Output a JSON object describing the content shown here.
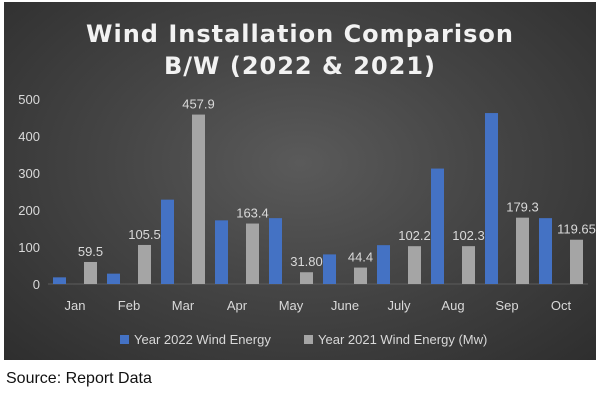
{
  "colors": {
    "series_2022": "#4472c4",
    "series_2021": "#a5a5a5",
    "background": "#404040",
    "text": "#d9d9d9",
    "gridline": "#5c5c5c"
  },
  "chart_data": {
    "type": "bar",
    "title_lines": [
      "Wind Installation Comparison",
      "B/W (2022 & 2021)"
    ],
    "categories": [
      "Jan",
      "Feb",
      "Mar",
      "Apr",
      "May",
      "June",
      "July",
      "Aug",
      "Sep",
      "Oct"
    ],
    "series": [
      {
        "name": "Year 2022 Wind Energy",
        "color": "#4472c4",
        "values": [
          18,
          28,
          228,
          172,
          178,
          80,
          105,
          312,
          462,
          178
        ],
        "labels": [
          "",
          "",
          "",
          "",
          "",
          "",
          "",
          "",
          "",
          ""
        ]
      },
      {
        "name": "Year 2021 Wind Energy (Mw)",
        "color": "#a5a5a5",
        "values": [
          59.5,
          105.5,
          457.9,
          163.4,
          31.8,
          44.4,
          102.2,
          102.3,
          179.3,
          119.65
        ],
        "labels": [
          "59.5",
          "105.5",
          "457.9",
          "163.4",
          "31.80",
          "44.4",
          "102.2",
          "102.3",
          "179.3",
          "119.65"
        ]
      }
    ],
    "yticks": [
      0,
      100,
      200,
      300,
      400,
      500
    ],
    "ylim": [
      0,
      500
    ],
    "grid": false,
    "legend_position": "bottom"
  },
  "source_note": "Source: Report Data"
}
